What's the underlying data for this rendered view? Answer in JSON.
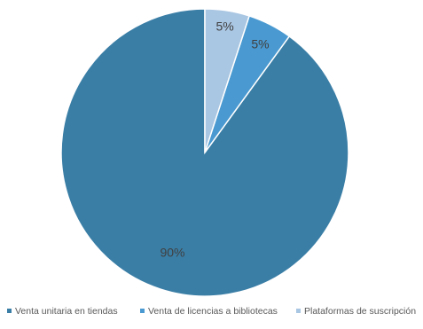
{
  "chart_data": {
    "type": "pie",
    "title": "",
    "categories": [
      "Venta unitaria en tiendas",
      "Venta de licencias a bibliotecas",
      "Plataformas de suscripción"
    ],
    "values": [
      90,
      5,
      5
    ],
    "data_labels": [
      "90%",
      "5%",
      "5%"
    ],
    "colors": [
      "#3a7ea6",
      "#4a9ad1",
      "#a9c6e2"
    ],
    "legend_position": "bottom"
  }
}
